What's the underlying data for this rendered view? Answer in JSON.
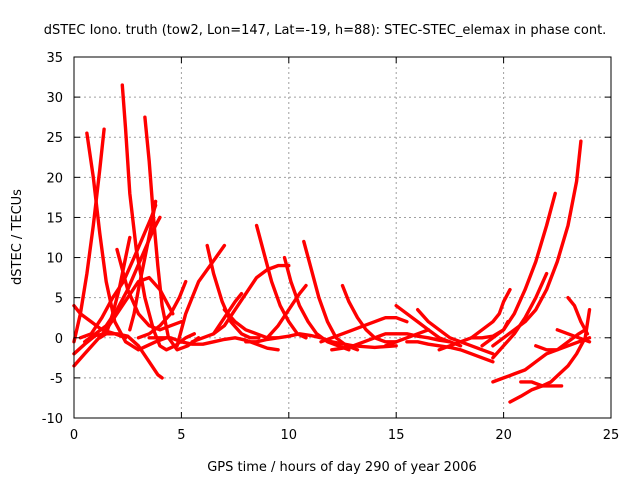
{
  "chart_data": {
    "type": "line",
    "title": "dSTEC Iono. truth (tow2, Lon=147, Lat=-19, h=88): STEC-STEC_elemax in phase cont.",
    "xlabel": "GPS time / hours of day 290 of year 2006",
    "ylabel": "dSTEC  / TECUs",
    "xlim": [
      0,
      25
    ],
    "ylim": [
      -10,
      35
    ],
    "xticks": [
      0,
      5,
      10,
      15,
      20,
      25
    ],
    "yticks": [
      -10,
      -5,
      0,
      5,
      10,
      15,
      20,
      25,
      30,
      35
    ],
    "grid": true,
    "legend": "none",
    "color": "#ff0000",
    "series": [
      {
        "x": [
          0.6,
          0.9,
          1.2,
          1.5,
          1.9,
          2.4,
          3.0,
          3.8,
          4.3
        ],
        "y": [
          25.5,
          20,
          13,
          7,
          2,
          -0.5,
          -1.5,
          -0.5,
          0
        ]
      },
      {
        "x": [
          0.0,
          0.3,
          0.6,
          0.9,
          1.2,
          1.4
        ],
        "y": [
          -0.5,
          3,
          8,
          14,
          21,
          26
        ]
      },
      {
        "x": [
          2.25,
          2.4,
          2.6,
          2.9,
          3.3,
          3.7,
          4.0,
          4.3,
          4.7,
          5.2,
          5.6
        ],
        "y": [
          31.5,
          26,
          18,
          11,
          5,
          1,
          -1,
          -1.5,
          -1,
          0,
          0.5
        ]
      },
      {
        "x": [
          1.2,
          1.5,
          1.8,
          2.1,
          2.4,
          2.6
        ],
        "y": [
          0,
          0.5,
          3,
          6,
          10,
          12.5
        ]
      },
      {
        "x": [
          3.3,
          3.5,
          3.7,
          3.9,
          4.1,
          4.4,
          4.8,
          5.3,
          5.8
        ],
        "y": [
          27.5,
          22,
          15,
          9,
          4,
          0,
          -1.5,
          -1,
          0
        ]
      },
      {
        "x": [
          2.6,
          2.8,
          3.0,
          3.3,
          3.6,
          3.8
        ],
        "y": [
          1,
          3,
          6,
          10,
          14,
          17
        ]
      },
      {
        "x": [
          0.0,
          0.5,
          1.0,
          1.5,
          2.0,
          2.5,
          3.0,
          3.5,
          3.9,
          4.1
        ],
        "y": [
          -2,
          -0.8,
          0.3,
          0.5,
          0.5,
          0.2,
          -1,
          -3,
          -4.6,
          -5
        ]
      },
      {
        "x": [
          0.3,
          0.8,
          1.3,
          1.8,
          2.3,
          2.8,
          3.2,
          3.6,
          3.8
        ],
        "y": [
          0,
          0.5,
          2.5,
          5,
          7,
          10,
          12.5,
          15,
          16.5
        ]
      },
      {
        "x": [
          0.5,
          1.0,
          1.5,
          2.0,
          2.5,
          2.9,
          3.3,
          3.7,
          4.0
        ],
        "y": [
          -0.5,
          0.5,
          1.5,
          3.5,
          6,
          8.5,
          11,
          13.5,
          15
        ]
      },
      {
        "x": [
          0.0,
          0.3,
          0.8,
          1.3,
          1.9,
          2.4
        ],
        "y": [
          4,
          3,
          2,
          1,
          0.5,
          0
        ]
      },
      {
        "x": [
          0.0,
          0.5,
          1.0,
          1.5,
          2.0,
          2.5,
          3.0,
          3.5,
          4.0,
          4.4,
          4.6
        ],
        "y": [
          -3.5,
          -2,
          -0.5,
          1,
          3,
          5,
          7,
          7.5,
          6,
          4,
          3
        ]
      },
      {
        "x": [
          2.0,
          2.5,
          3.0,
          3.5,
          4.0,
          4.5,
          5.0
        ],
        "y": [
          11,
          6,
          3,
          1.5,
          1,
          1.5,
          2
        ]
      },
      {
        "x": [
          3.0,
          3.5,
          4.0,
          4.5,
          4.9,
          5.2
        ],
        "y": [
          0,
          0.5,
          1.5,
          3,
          5,
          7
        ]
      },
      {
        "x": [
          3.5,
          4.0,
          4.5,
          5.0,
          5.5,
          6.0,
          6.5,
          7.0,
          7.5,
          8.0,
          8.5,
          9.0,
          9.5
        ],
        "y": [
          0,
          0,
          0,
          -0.5,
          -0.8,
          -0.8,
          -0.5,
          -0.2,
          0,
          -0.3,
          -0.8,
          -1.3,
          -1.5
        ]
      },
      {
        "x": [
          4.8,
          5.0,
          5.2,
          5.5,
          5.8,
          6.2,
          6.6,
          7.0
        ],
        "y": [
          -1,
          1,
          3,
          5,
          7,
          8.5,
          10,
          11.5
        ]
      },
      {
        "x": [
          6.2,
          6.5,
          6.9,
          7.3,
          7.8,
          8.2,
          8.6
        ],
        "y": [
          11.5,
          8,
          4.5,
          2,
          0.5,
          0,
          0
        ]
      },
      {
        "x": [
          5.5,
          6.0,
          6.5,
          7.0,
          7.5,
          8.0,
          8.5,
          9.0,
          9.5,
          10.0
        ],
        "y": [
          -0.5,
          0,
          0.5,
          1.5,
          3.5,
          5.5,
          7.5,
          8.5,
          9,
          9
        ]
      },
      {
        "x": [
          6.5,
          7.0,
          7.5,
          7.8
        ],
        "y": [
          0.5,
          2.5,
          4.5,
          5.5
        ]
      },
      {
        "x": [
          8.5,
          8.8,
          9.2,
          9.6,
          10.0,
          10.4,
          10.8
        ],
        "y": [
          14,
          11,
          7,
          4,
          2,
          0.5,
          0
        ]
      },
      {
        "x": [
          7.0,
          7.5,
          8.0,
          8.5,
          9.0,
          9.5
        ],
        "y": [
          3.5,
          2,
          1,
          0.5,
          0,
          0
        ]
      },
      {
        "x": [
          9.8,
          10.1,
          10.5,
          10.9,
          11.3,
          11.8,
          12.3,
          12.8
        ],
        "y": [
          10,
          7,
          4,
          2,
          0.5,
          -0.5,
          -1,
          -1.5
        ]
      },
      {
        "x": [
          10.7,
          11.0,
          11.4,
          11.8,
          12.2,
          12.7,
          13.2
        ],
        "y": [
          12,
          9,
          5,
          2,
          0,
          -1,
          -1.5
        ]
      },
      {
        "x": [
          8.0,
          8.5,
          9.0,
          9.5,
          10.0,
          10.5,
          11.0,
          11.5,
          12.0,
          13.0,
          14.0,
          15.0
        ],
        "y": [
          -0.5,
          -0.5,
          -0.2,
          0,
          0.2,
          0.5,
          0.3,
          0,
          -0.5,
          -1,
          -1.2,
          -1
        ]
      },
      {
        "x": [
          9.0,
          9.5,
          10.0,
          10.5,
          10.8
        ],
        "y": [
          0,
          1.5,
          3.5,
          5.5,
          6.5
        ]
      },
      {
        "x": [
          12.5,
          12.8,
          13.2,
          13.6,
          14.0,
          14.5,
          15.0
        ],
        "y": [
          6.5,
          4.5,
          2.5,
          1,
          0,
          -0.5,
          -0.5
        ]
      },
      {
        "x": [
          11.5,
          12.0,
          12.5,
          13.0,
          13.5,
          14.0,
          14.5,
          15.0,
          15.5
        ],
        "y": [
          -0.5,
          0,
          0.5,
          1,
          1.5,
          2,
          2.5,
          2.5,
          2
        ]
      },
      {
        "x": [
          12.0,
          12.5,
          13.0,
          13.5,
          14.0,
          14.5,
          15.0,
          15.5,
          16.0,
          16.5,
          17.0,
          17.5,
          18.0
        ],
        "y": [
          -1.5,
          -1.3,
          -1,
          -0.5,
          0,
          0.5,
          0.5,
          0.5,
          0.2,
          0,
          -0.3,
          -0.5,
          -1
        ]
      },
      {
        "x": [
          15.0,
          15.5,
          16.0,
          16.5,
          17.0,
          17.5
        ],
        "y": [
          4,
          3,
          2,
          1,
          0,
          -0.5
        ]
      },
      {
        "x": [
          14.5,
          15.0,
          15.5,
          16.0,
          16.5
        ],
        "y": [
          -1,
          -0.5,
          0,
          0.5,
          1
        ]
      },
      {
        "x": [
          16.0,
          16.5,
          17.0,
          17.5,
          18.0,
          18.5,
          19.0,
          19.5
        ],
        "y": [
          3.5,
          2,
          1,
          0,
          -0.5,
          -1,
          -1.5,
          -2
        ]
      },
      {
        "x": [
          17.0,
          17.5,
          18.0,
          18.5,
          19.0,
          19.5,
          19.8,
          20.0,
          20.3
        ],
        "y": [
          -1.5,
          -1,
          -0.5,
          0,
          1,
          2,
          3,
          4.5,
          6
        ]
      },
      {
        "x": [
          15.5,
          16.0,
          16.5,
          17.0,
          17.5,
          18.0,
          18.5,
          19.0,
          19.5
        ],
        "y": [
          -0.5,
          -0.5,
          -0.8,
          -1,
          -1.2,
          -1.5,
          -2,
          -2.5,
          -3
        ]
      },
      {
        "x": [
          19.5,
          20.0,
          20.5,
          21.0,
          21.5,
          22.0
        ],
        "y": [
          -2.5,
          -1,
          0.5,
          2.5,
          5,
          8
        ]
      },
      {
        "x": [
          18.5,
          19.0,
          19.5,
          20.0,
          20.5,
          21.0,
          21.5,
          22.0,
          22.4
        ],
        "y": [
          0,
          0,
          0.2,
          1,
          3,
          6,
          9.5,
          14,
          18
        ]
      },
      {
        "x": [
          19.5,
          20.0,
          20.5,
          21.0,
          21.5,
          22.0,
          22.5,
          23.0,
          23.4,
          23.6
        ],
        "y": [
          -1,
          0,
          1,
          2,
          3.5,
          6,
          9.5,
          14,
          19.5,
          24.5
        ]
      },
      {
        "x": [
          19.5,
          20.0,
          20.5,
          21.0,
          21.5,
          22.0,
          22.5,
          23.0,
          23.5,
          23.8
        ],
        "y": [
          -5.5,
          -5,
          -4.5,
          -4,
          -3,
          -2,
          -1.5,
          -0.5,
          0.5,
          1
        ]
      },
      {
        "x": [
          20.3,
          20.8,
          21.3,
          21.8,
          22.2,
          22.6,
          23.0,
          23.4,
          23.8,
          24.0
        ],
        "y": [
          -8,
          -7.3,
          -6.5,
          -6,
          -5.5,
          -4.5,
          -3.5,
          -2,
          0,
          3.5
        ]
      },
      {
        "x": [
          20.8,
          21.3,
          21.8,
          22.3,
          22.7
        ],
        "y": [
          -5.5,
          -5.5,
          -6,
          -6,
          -6
        ]
      },
      {
        "x": [
          21.5,
          22.0,
          22.5,
          23.0,
          23.5,
          24.0
        ],
        "y": [
          -1,
          -1.5,
          -1.5,
          -1,
          -0.5,
          0
        ]
      },
      {
        "x": [
          22.5,
          23.0,
          23.5,
          24.0
        ],
        "y": [
          1,
          0.5,
          0,
          -0.5
        ]
      },
      {
        "x": [
          23.0,
          23.3,
          23.6,
          23.9
        ],
        "y": [
          5,
          4,
          2,
          0.5
        ]
      },
      {
        "x": [
          19.0,
          19.5,
          20.0,
          20.2
        ],
        "y": [
          -1,
          0,
          1,
          2
        ]
      }
    ]
  }
}
